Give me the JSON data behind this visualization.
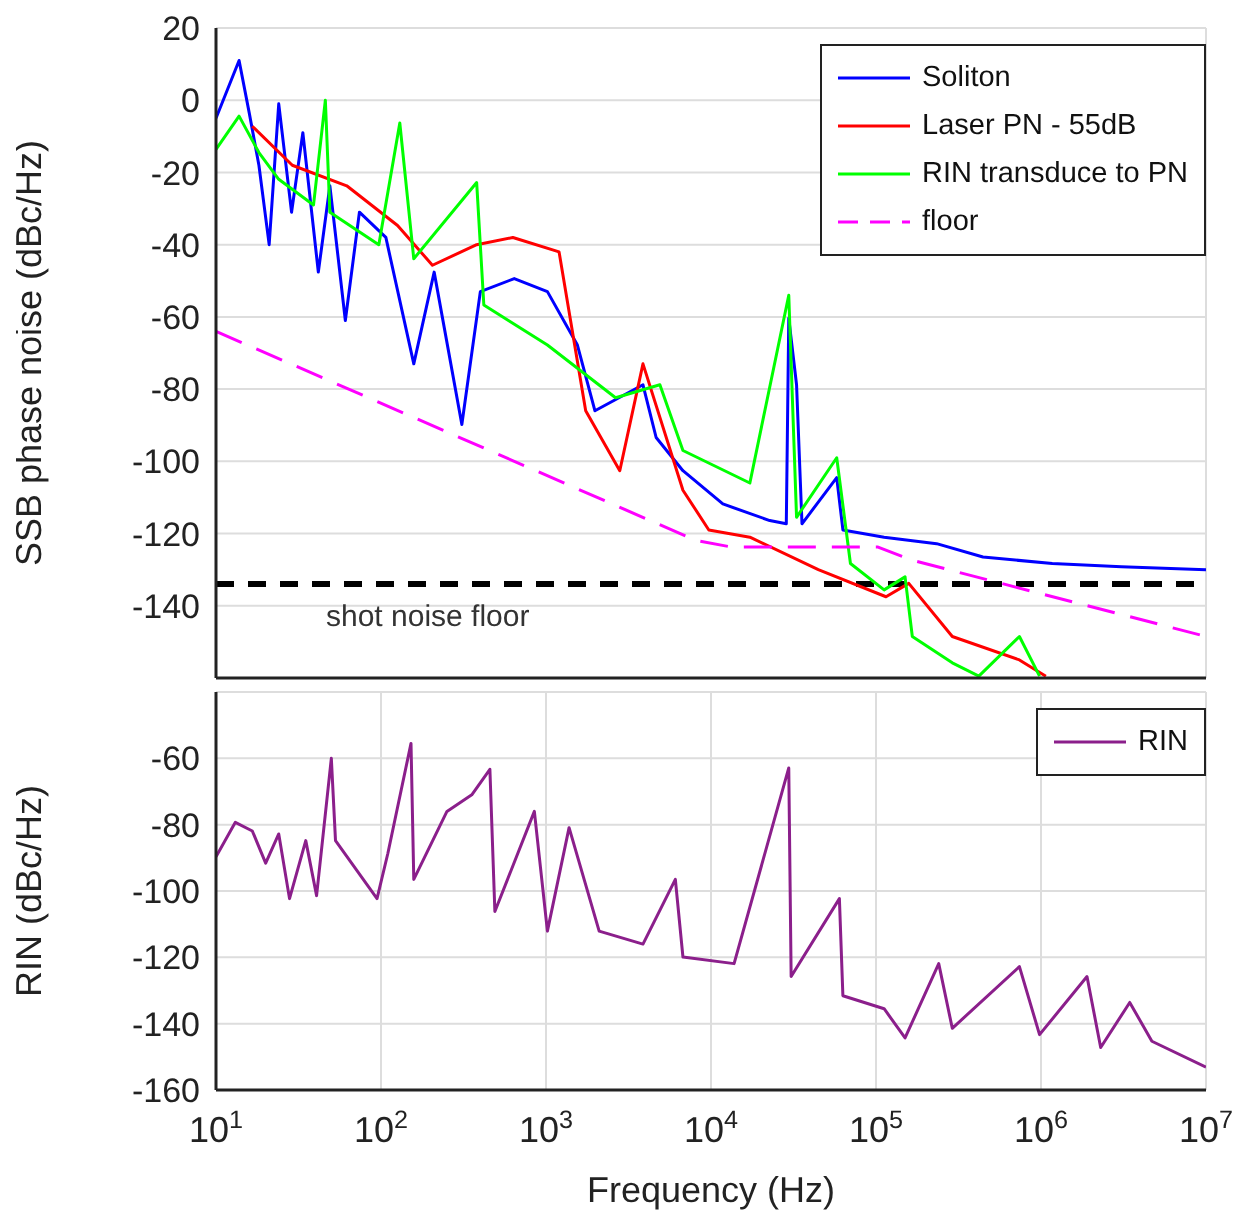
{
  "chart_data": [
    {
      "type": "line",
      "ylabel": "SSB phase noise (dBc/Hz)",
      "xlim": [
        10,
        10000000
      ],
      "xticks": [
        {
          "value": 10,
          "label": null
        },
        {
          "value": 100,
          "label": null
        },
        {
          "value": 1000,
          "label": null
        },
        {
          "value": 10000,
          "label": null
        },
        {
          "value": 100000,
          "label": null
        },
        {
          "value": 1000000,
          "label": null
        },
        {
          "value": 10000000,
          "label": null
        }
      ],
      "ylim": [
        -160,
        20
      ],
      "yticks": [
        -140,
        -120,
        -100,
        -80,
        -60,
        -40,
        -20,
        0,
        20
      ],
      "log": "x",
      "grid": true,
      "legend": "top right",
      "marker": "none",
      "tick_labels": "y",
      "ref_lines": [
        {
          "axis": "y",
          "value": -134,
          "label": "shot noise floor",
          "color": "#000000",
          "line_style": "dashed"
        }
      ],
      "series": [
        {
          "name": "Soliton",
          "color": "#0000ff",
          "x": [
            10,
            13.8,
            15.9,
            18.2,
            21,
            24,
            28.7,
            33.6,
            41.7,
            49,
            60.8,
            74,
            107,
            158,
            210,
            309,
            400,
            642,
            1020,
            1550,
            1980,
            3870,
            4650,
            6760,
            11800,
            22700,
            28600,
            29600,
            33000,
            35600,
            57800,
            63000,
            112000,
            233000,
            445000,
            1170000,
            3070000,
            10000000
          ],
          "values": [
            -5,
            11,
            -3.5,
            -18,
            -40,
            -1,
            -31,
            -9,
            -47.6,
            -23.7,
            -61,
            -31,
            -38,
            -73,
            -47.6,
            -89.8,
            -53,
            -49.4,
            -53,
            -67.8,
            -86,
            -78.8,
            -93.4,
            -102.6,
            -111.8,
            -116.4,
            -117.3,
            -60.4,
            -78.8,
            -117.3,
            -104.5,
            -119,
            -121,
            -122.8,
            -126.5,
            -128.3,
            -129.2,
            -130
          ]
        },
        {
          "name": "Laser PN - 55dB",
          "color": "#ff0000",
          "x": [
            16.6,
            29,
            62,
            126,
            205,
            380,
            630,
            1200,
            1740,
            2800,
            3870,
            6760,
            9700,
            17200,
            44700,
            115000,
            158000,
            290000,
            740000,
            1070000
          ],
          "values": [
            -7.2,
            -18,
            -23.7,
            -34.7,
            -45.7,
            -40,
            -38,
            -42,
            -86,
            -102.6,
            -73,
            -108,
            -119,
            -121,
            -130,
            -137.5,
            -133.8,
            -148.5,
            -155,
            -159.5
          ]
        },
        {
          "name": "RIN transduce to PN",
          "color": "#00ff00",
          "x": [
            10,
            13.8,
            18.2,
            24,
            39,
            46,
            49,
            97,
            130,
            158,
            380,
            420,
            1020,
            2640,
            4900,
            6760,
            17200,
            29600,
            33000,
            57800,
            70000,
            112000,
            150000,
            166000,
            290000,
            420000,
            740000,
            980000
          ],
          "values": [
            -13.6,
            -4.4,
            -14.5,
            -21.9,
            -29,
            0,
            -31,
            -40,
            -6.3,
            -43.9,
            -22.8,
            -56.7,
            -67.8,
            -82.4,
            -78.8,
            -97,
            -106,
            -54,
            -115.5,
            -99,
            -128.3,
            -135.6,
            -132,
            -148.5,
            -155.8,
            -159.5,
            -148.5,
            -159.5
          ]
        },
        {
          "name": "floor",
          "color": "#ff00ff",
          "line_style": "dashed",
          "x": [
            10,
            8100,
            13200,
            102000,
            166000,
            10000000
          ],
          "values": [
            -64,
            -121.9,
            -123.7,
            -123.7,
            -127.4,
            -148.5
          ]
        }
      ]
    },
    {
      "type": "line",
      "xlabel": "Frequency (Hz)",
      "ylabel": "RIN (dBc/Hz)",
      "xlim": [
        10,
        10000000
      ],
      "xticks": [
        {
          "value": 10,
          "label": "10$^{1}$"
        },
        {
          "value": 100,
          "label": "10$^{2}$"
        },
        {
          "value": 1000,
          "label": "10$^{3}$"
        },
        {
          "value": 10000,
          "label": "10$^{4}$"
        },
        {
          "value": 100000,
          "label": "10$^{5}$"
        },
        {
          "value": 1000000,
          "label": "10$^{6}$"
        },
        {
          "value": 10000000,
          "label": "10$^{7}$"
        }
      ],
      "ylim": [
        -160,
        -40
      ],
      "yticks": [
        -160,
        -140,
        -120,
        -100,
        -80,
        -60
      ],
      "log": "x",
      "grid": true,
      "legend": "top right",
      "marker": "none",
      "series": [
        {
          "name": "RIN",
          "color": "#8b1f8b",
          "x": [
            10,
            13.1,
            16.6,
            20,
            24,
            27.9,
            35,
            40.7,
            50,
            53,
            94.6,
            110,
            152,
            158,
            251,
            355,
            457,
            490,
            850,
            1020,
            1380,
            2100,
            3870,
            6080,
            6760,
            13800,
            29600,
            30600,
            60000,
            63000,
            112000,
            150000,
            240000,
            290000,
            740000,
            980000,
            1900000,
            2300000,
            3450000,
            4700000,
            10000000
          ],
          "values": [
            -89.7,
            -79.3,
            -81.9,
            -91.6,
            -82.8,
            -102.3,
            -84.8,
            -101.4,
            -60,
            -84.8,
            -102.3,
            -88.7,
            -55.5,
            -96.5,
            -76,
            -71,
            -63.3,
            -106.2,
            -76,
            -112.1,
            -80.9,
            -112.1,
            -116,
            -96.5,
            -119.9,
            -121.9,
            -62.9,
            -125.8,
            -102.3,
            -131.6,
            -135.5,
            -144.3,
            -121.9,
            -141.4,
            -122.8,
            -143.3,
            -125.8,
            -147.2,
            -133.6,
            -145.3,
            -153.1
          ]
        }
      ]
    }
  ]
}
